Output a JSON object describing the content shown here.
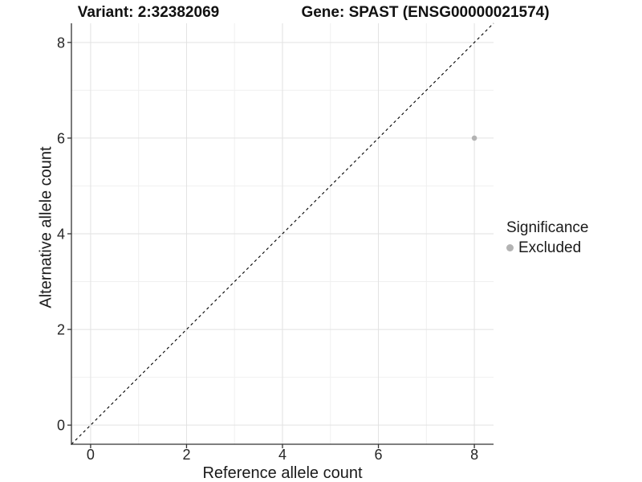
{
  "header": {
    "variant_title": "Variant: 2:32382069",
    "gene_title": "Gene: SPAST (ENSG00000021574)"
  },
  "chart_data": {
    "type": "scatter",
    "title": "Variant: 2:32382069 — Gene: SPAST (ENSG00000021574)",
    "xlabel": "Reference allele count",
    "ylabel": "Alternative allele count",
    "xlim": [
      -0.4,
      8.4
    ],
    "ylim": [
      -0.4,
      8.4
    ],
    "x_ticks": [
      0,
      2,
      4,
      6,
      8
    ],
    "y_ticks": [
      0,
      2,
      4,
      6,
      8
    ],
    "x_minor_ticks": [
      1,
      3,
      5,
      7
    ],
    "y_minor_ticks": [
      1,
      3,
      5,
      7
    ],
    "grid": "major+minor",
    "series": [
      {
        "name": "Excluded",
        "points": [
          {
            "x": 8,
            "y": 6
          }
        ],
        "color": "#b3b3b3"
      }
    ],
    "identity_line": {
      "style": "dashed",
      "color": "#000000",
      "from": [
        -0.4,
        -0.4
      ],
      "to": [
        8.4,
        8.4
      ]
    },
    "legend": {
      "position": "right",
      "title": "Significance",
      "items": [
        {
          "label": "Excluded",
          "color": "#b3b3b3"
        }
      ]
    },
    "colors": {
      "point": "#b3b3b3",
      "grid_major": "#e2e2e2",
      "grid_minor": "#f0f0f0",
      "axis_line": "#333333",
      "tick_text": "#262626"
    }
  }
}
